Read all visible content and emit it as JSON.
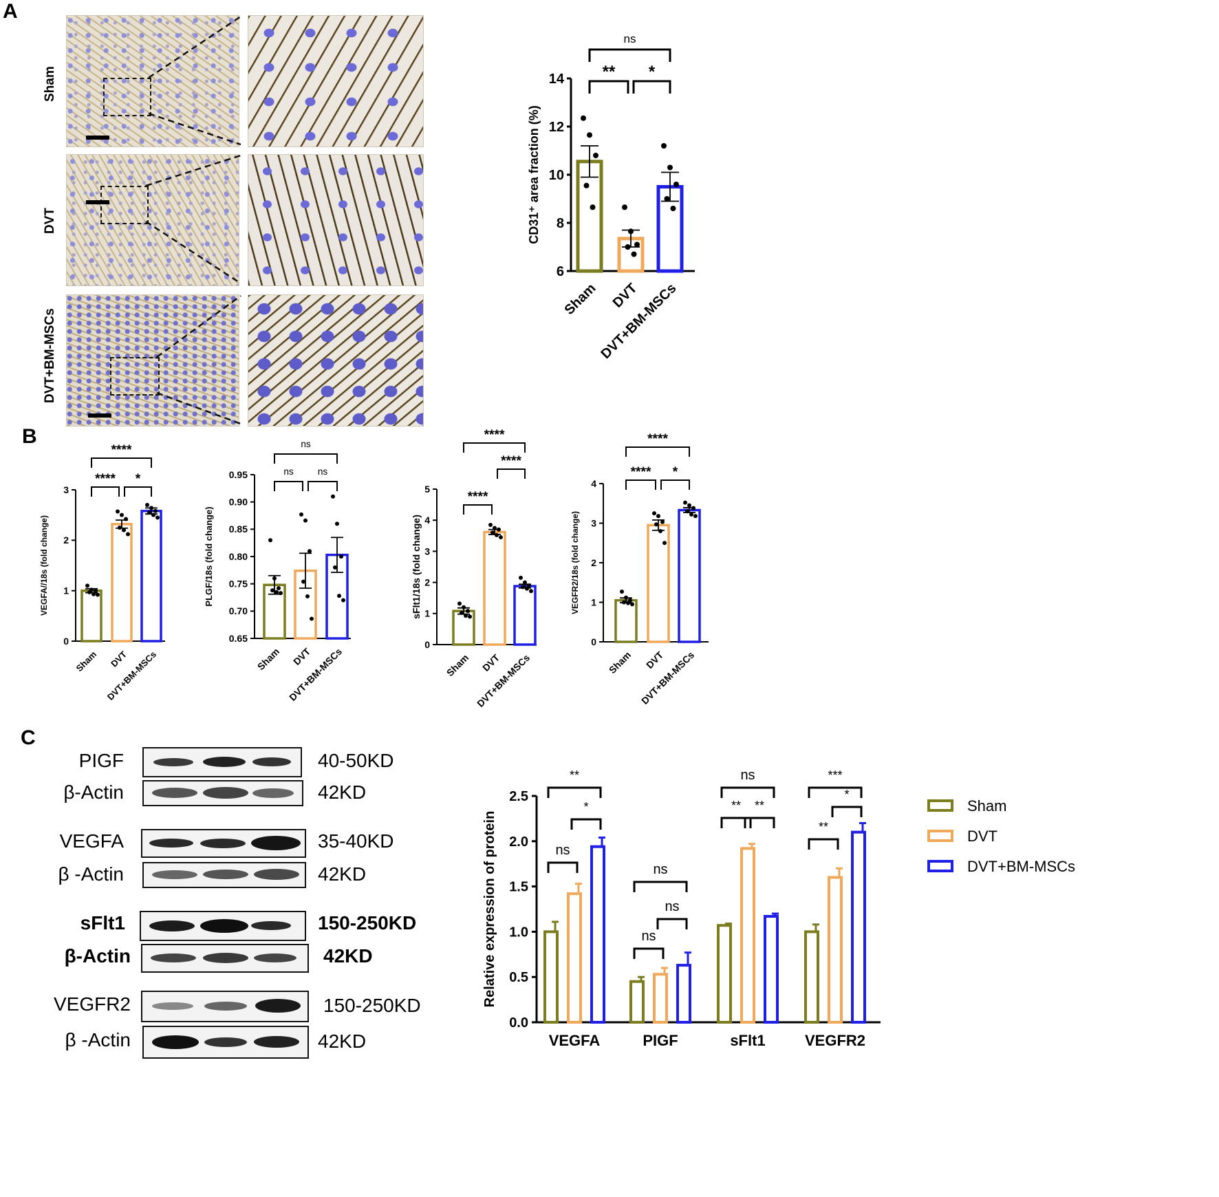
{
  "panels": {
    "a": "A",
    "b": "B",
    "c": "C"
  },
  "panelA": {
    "rows": [
      "Sham",
      "DVT",
      "DVT+BM-MSCs"
    ]
  },
  "blots": [
    {
      "label": "PIGF",
      "mw": "40-50KD"
    },
    {
      "label": "β-Actin",
      "mw": "42KD"
    },
    {
      "label": "VEGFA",
      "mw": "35-40KD"
    },
    {
      "label": "β -Actin",
      "mw": "42KD"
    },
    {
      "label": "sFlt1",
      "mw": "150-250KD"
    },
    {
      "label": "β-Actin",
      "mw": "42KD"
    },
    {
      "label": "VEGFR2",
      "mw": "150-250KD"
    },
    {
      "label": "β -Actin",
      "mw": "42KD"
    }
  ],
  "colors": {
    "sham": "#7b7d1e",
    "dvt": "#f0a85a",
    "bmmsc": "#1f1fe6"
  },
  "chart_data": [
    {
      "id": "cd31",
      "type": "bar",
      "categories": [
        "Sham",
        "DVT",
        "DVT+BM-MSCs"
      ],
      "values": [
        10.55,
        7.35,
        9.5
      ],
      "errors": [
        0.65,
        0.35,
        0.6
      ],
      "points": [
        [
          12.35,
          11.65,
          10.8,
          9.55,
          8.65
        ],
        [
          8.65,
          7.65,
          7.1,
          7.0,
          6.7
        ],
        [
          11.2,
          10.3,
          9.6,
          9.0,
          8.6
        ]
      ],
      "ylabel": "CD31⁺ area fraction (%)",
      "ylim": [
        6,
        14
      ],
      "yticks": [
        "6",
        "8",
        "10",
        "12",
        "14"
      ],
      "sig": [
        "**",
        "*",
        "ns"
      ]
    },
    {
      "id": "vegfa",
      "type": "bar",
      "categories": [
        "Sham",
        "DVT",
        "DVT+BM-MSCs"
      ],
      "values": [
        1.0,
        2.32,
        2.58
      ],
      "errors": [
        0.04,
        0.08,
        0.06
      ],
      "points": [
        [
          1.1,
          1.02,
          1.0,
          0.97,
          0.93,
          0.92
        ],
        [
          2.57,
          2.5,
          2.42,
          2.25,
          2.2,
          2.12
        ],
        [
          2.7,
          2.64,
          2.58,
          2.55,
          2.5,
          2.45
        ]
      ],
      "ylabel": "VEGFA//18s (fold change)",
      "ylim": [
        0,
        3
      ],
      "yticks": [
        "0",
        "1",
        "2",
        "3"
      ],
      "sig": [
        "****",
        "*",
        "****"
      ]
    },
    {
      "id": "plgf",
      "type": "bar",
      "categories": [
        "Sham",
        "DVT",
        "DVT+BM-MSCs"
      ],
      "values": [
        0.748,
        0.774,
        0.803
      ],
      "errors": [
        0.017,
        0.032,
        0.032
      ],
      "points": [
        [
          0.83,
          0.76,
          0.742,
          0.738,
          0.735,
          0.733
        ],
        [
          0.877,
          0.866,
          0.81,
          0.754,
          0.727,
          0.686
        ],
        [
          0.91,
          0.86,
          0.8,
          0.78,
          0.728,
          0.72
        ]
      ],
      "ylabel": "PLGF/18s (fold change)",
      "ylim": [
        0.65,
        0.95
      ],
      "yticks": [
        "0.65",
        "0.70",
        "0.75",
        "0.80",
        "0.85",
        "0.90",
        "0.95"
      ],
      "sig": [
        "ns",
        "ns",
        "ns"
      ]
    },
    {
      "id": "sflt1",
      "type": "bar",
      "categories": [
        "Sham",
        "DVT",
        "DVT+BM-MSCs"
      ],
      "values": [
        1.08,
        3.62,
        1.88
      ],
      "errors": [
        0.1,
        0.08,
        0.06
      ],
      "points": [
        [
          1.32,
          1.2,
          1.08,
          1.02,
          0.93,
          0.9
        ],
        [
          3.85,
          3.75,
          3.7,
          3.6,
          3.52,
          3.45
        ],
        [
          2.15,
          2.0,
          1.9,
          1.85,
          1.8,
          1.72
        ]
      ],
      "ylabel": "sFlt1/18s (fold change)",
      "ylim": [
        0,
        5
      ],
      "yticks": [
        "0",
        "1",
        "2",
        "3",
        "4",
        "5"
      ],
      "sig": [
        "****",
        "****",
        "****"
      ]
    },
    {
      "id": "vegfr2",
      "type": "bar",
      "categories": [
        "Sham",
        "DVT",
        "DVT+BM-MSCs"
      ],
      "values": [
        1.05,
        2.95,
        3.33
      ],
      "errors": [
        0.06,
        0.13,
        0.06
      ],
      "points": [
        [
          1.27,
          1.12,
          1.05,
          1.0,
          0.98,
          0.95
        ],
        [
          3.25,
          3.18,
          3.03,
          2.97,
          2.8,
          2.5
        ],
        [
          3.52,
          3.45,
          3.38,
          3.3,
          3.22,
          3.18
        ]
      ],
      "ylabel": "VEGFR2/18s (fold change)",
      "ylim": [
        0,
        4
      ],
      "yticks": [
        "0",
        "1",
        "2",
        "3",
        "4"
      ],
      "sig": [
        "****",
        "*",
        "****"
      ]
    },
    {
      "id": "protein",
      "type": "bar",
      "categories": [
        "VEGFA",
        "PIGF",
        "sFlt1",
        "VEGFR2"
      ],
      "series": [
        {
          "name": "Sham",
          "values": [
            1.0,
            0.45,
            1.07,
            1.0
          ],
          "errors": [
            0.11,
            0.05,
            0.02,
            0.08
          ]
        },
        {
          "name": "DVT",
          "values": [
            1.42,
            0.53,
            1.92,
            1.6
          ],
          "errors": [
            0.11,
            0.07,
            0.05,
            0.1
          ]
        },
        {
          "name": "DVT+BM-MSCs",
          "values": [
            1.94,
            0.63,
            1.17,
            2.1
          ],
          "errors": [
            0.1,
            0.14,
            0.03,
            0.1
          ]
        }
      ],
      "ylabel": "Relative expression of protein",
      "ylim": [
        0,
        2.5
      ],
      "yticks": [
        "0.0",
        "0.5",
        "1.0",
        "1.5",
        "2.0",
        "2.5"
      ],
      "sig": [
        [
          "ns",
          "*",
          "**"
        ],
        [
          "ns",
          "ns",
          "ns"
        ],
        [
          "**",
          "**",
          "ns"
        ],
        [
          "**",
          "*",
          "***"
        ]
      ],
      "legend_position": "top-right"
    }
  ]
}
